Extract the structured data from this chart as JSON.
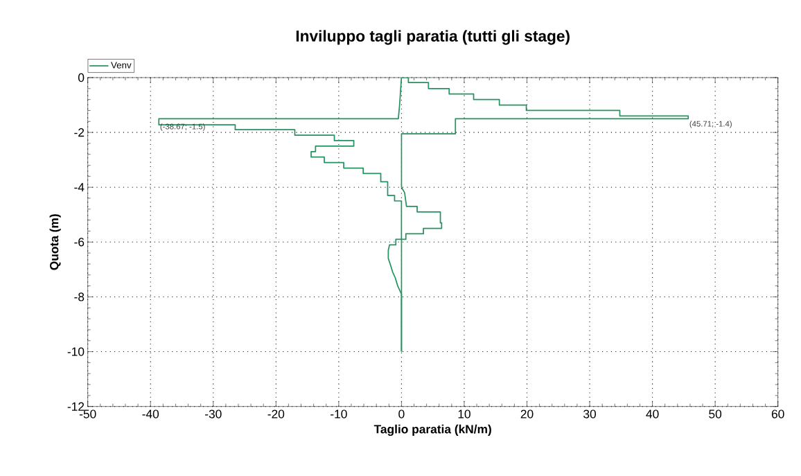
{
  "chart_data": {
    "type": "line",
    "title": "Inviluppo tagli paratia (tutti gli stage)",
    "xlabel": "Taglio paratia (kN/m)",
    "ylabel": "Quota (m)",
    "series": [
      {
        "name": "Venv",
        "color": "#23935f",
        "x": [
          0,
          0,
          0.7,
          0.7,
          3.5,
          3.5,
          6.4,
          6.4,
          6.2,
          6.2,
          2.5,
          2.5,
          0.8,
          0.5,
          0,
          0,
          8.6,
          8.6,
          45.71,
          45.71,
          34.8,
          34.8,
          19.9,
          19.9,
          15.6,
          15.6,
          11.5,
          11.5,
          7.6,
          7.6,
          4.3,
          4.3,
          1.1,
          1.1,
          0
        ],
        "values": [
          -10,
          -5.9,
          -5.9,
          -5.7,
          -5.7,
          -5.5,
          -5.5,
          -5.3,
          -5.3,
          -4.9,
          -4.9,
          -4.7,
          -4.7,
          -4.2,
          -4.0,
          -2.05,
          -2.05,
          -1.5,
          -1.5,
          -1.4,
          -1.4,
          -1.2,
          -1.2,
          -1.0,
          -1.0,
          -0.8,
          -0.8,
          -0.6,
          -0.6,
          -0.4,
          -0.4,
          -0.18,
          -0.18,
          0,
          0
        ]
      },
      {
        "color": "#23935f",
        "x": [
          0,
          -0.3,
          -0.5,
          -38.67,
          -38.67,
          -26.5,
          -26.5,
          -17,
          -17,
          -10.7,
          -10.7,
          -7.6,
          -7.6,
          -13.7,
          -13.7,
          -14.4,
          -14.4,
          -12.3,
          -12.3,
          -9.2,
          -9.2,
          -6.1,
          -6.1,
          -3.3,
          -3.3,
          -2.2,
          -2.2,
          -1.1,
          -1.1,
          0,
          0,
          -0.9,
          -0.9,
          -1.9,
          -2.1,
          -2.1,
          -1.8,
          -1.4,
          -1.0,
          -0.6,
          0,
          0
        ],
        "values": [
          0,
          -1.0,
          -1.5,
          -1.5,
          -1.72,
          -1.72,
          -1.9,
          -1.9,
          -2.1,
          -2.1,
          -2.3,
          -2.3,
          -2.5,
          -2.5,
          -2.7,
          -2.7,
          -2.9,
          -2.9,
          -3.1,
          -3.1,
          -3.3,
          -3.3,
          -3.5,
          -3.5,
          -3.8,
          -3.8,
          -4.3,
          -4.3,
          -4.5,
          -4.5,
          -5.9,
          -5.9,
          -6.1,
          -6.1,
          -6.3,
          -6.6,
          -6.8,
          -7.1,
          -7.3,
          -7.6,
          -7.9,
          -10
        ]
      }
    ],
    "annotations": [
      {
        "text": "(-38.67; -1.5)",
        "x": -38.67,
        "y": -1.5
      },
      {
        "text": "(45.71; -1.4)",
        "x": 45.71,
        "y": -1.4
      }
    ],
    "xlim": [
      -50,
      60
    ],
    "xticks": [
      -50,
      -40,
      -30,
      -20,
      -10,
      0,
      10,
      20,
      30,
      40,
      50,
      60
    ],
    "ylim": [
      -12,
      0
    ],
    "yticks": [
      -12,
      -10,
      -8,
      -6,
      -4,
      -2,
      0
    ],
    "grid": true,
    "legend": "top left",
    "marker": "none",
    "line_style": "solid"
  }
}
